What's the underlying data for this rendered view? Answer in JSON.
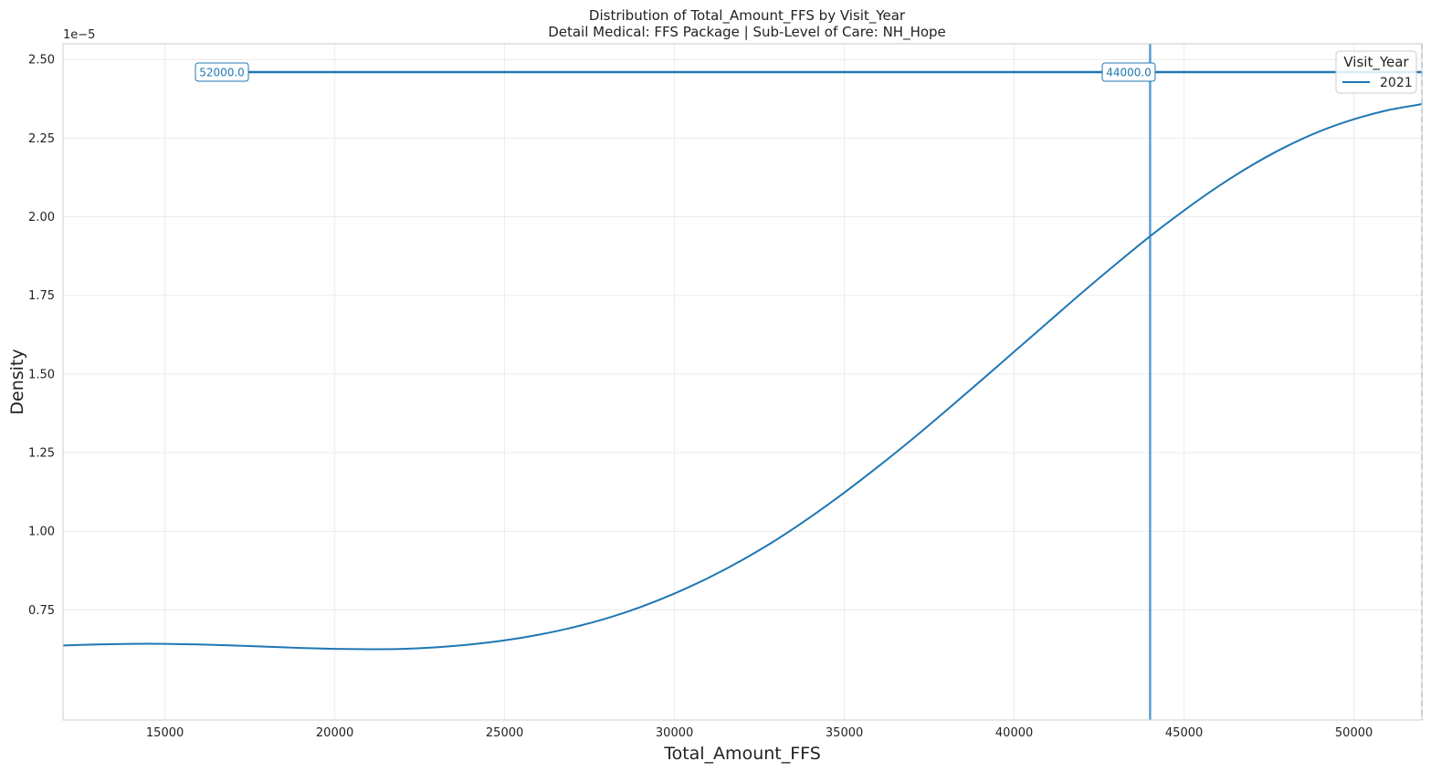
{
  "chart_data": {
    "type": "line",
    "title": "Distribution of Total_Amount_FFS by Visit_Year",
    "subtitle": "Detail Medical: FFS Package | Sub-Level of Care: NH_Hope",
    "xlabel": "Total_Amount_FFS",
    "ylabel": "Density",
    "y_offset_label": "1e−5",
    "xlim": [
      12000,
      52000
    ],
    "ylim": [
      4e-06,
      2.55e-05
    ],
    "x_ticks": [
      15000,
      20000,
      25000,
      30000,
      35000,
      40000,
      45000,
      50000
    ],
    "x_tick_labels": [
      "15000",
      "20000",
      "25000",
      "30000",
      "35000",
      "40000",
      "45000",
      "50000"
    ],
    "y_ticks": [
      7.5e-06,
      1e-05,
      1.25e-05,
      1.5e-05,
      1.75e-05,
      2e-05,
      2.25e-05,
      2.5e-05
    ],
    "y_tick_labels": [
      "0.75",
      "1.00",
      "1.25",
      "1.50",
      "1.75",
      "2.00",
      "2.25",
      "2.50"
    ],
    "grid": true,
    "legend": {
      "title": "Visit_Year",
      "placement": "top-right"
    },
    "series": [
      {
        "name": "2021",
        "color": "#1f77b4",
        "x": [
          12000,
          13000,
          14000,
          15000,
          16000,
          17000,
          18000,
          19000,
          20000,
          21000,
          22000,
          23000,
          24000,
          25000,
          26000,
          27000,
          28000,
          29000,
          30000,
          31000,
          32000,
          33000,
          34000,
          35000,
          36000,
          37000,
          38000,
          39000,
          40000,
          41000,
          42000,
          43000,
          44000,
          45000,
          46000,
          47000,
          48000,
          49000,
          50000,
          51000,
          52000
        ],
        "y": [
          6.37e-06,
          6.4e-06,
          6.42e-06,
          6.42e-06,
          6.4e-06,
          6.37e-06,
          6.33e-06,
          6.29e-06,
          6.26e-06,
          6.25e-06,
          6.26e-06,
          6.31e-06,
          6.4e-06,
          6.53e-06,
          6.71e-06,
          6.94e-06,
          7.23e-06,
          7.59e-06,
          8.02e-06,
          8.52e-06,
          9.09e-06,
          9.73e-06,
          1.045e-05,
          1.123e-05,
          1.206e-05,
          1.293e-05,
          1.384e-05,
          1.477e-05,
          1.571e-05,
          1.665e-05,
          1.759e-05,
          1.85e-05,
          1.938e-05,
          2.02e-05,
          2.096e-05,
          2.164e-05,
          2.223e-05,
          2.272e-05,
          2.31e-05,
          2.339e-05,
          2.358e-05
        ]
      }
    ],
    "annotations": [
      {
        "label": "52000.0",
        "x": 52000,
        "line_style": "dashed",
        "color": "#7ab6d9"
      },
      {
        "label": "44000.0",
        "x": 44000,
        "line_style": "solid",
        "color": "#5a9fd0"
      }
    ],
    "annotation_level_y": 2.46e-05
  }
}
